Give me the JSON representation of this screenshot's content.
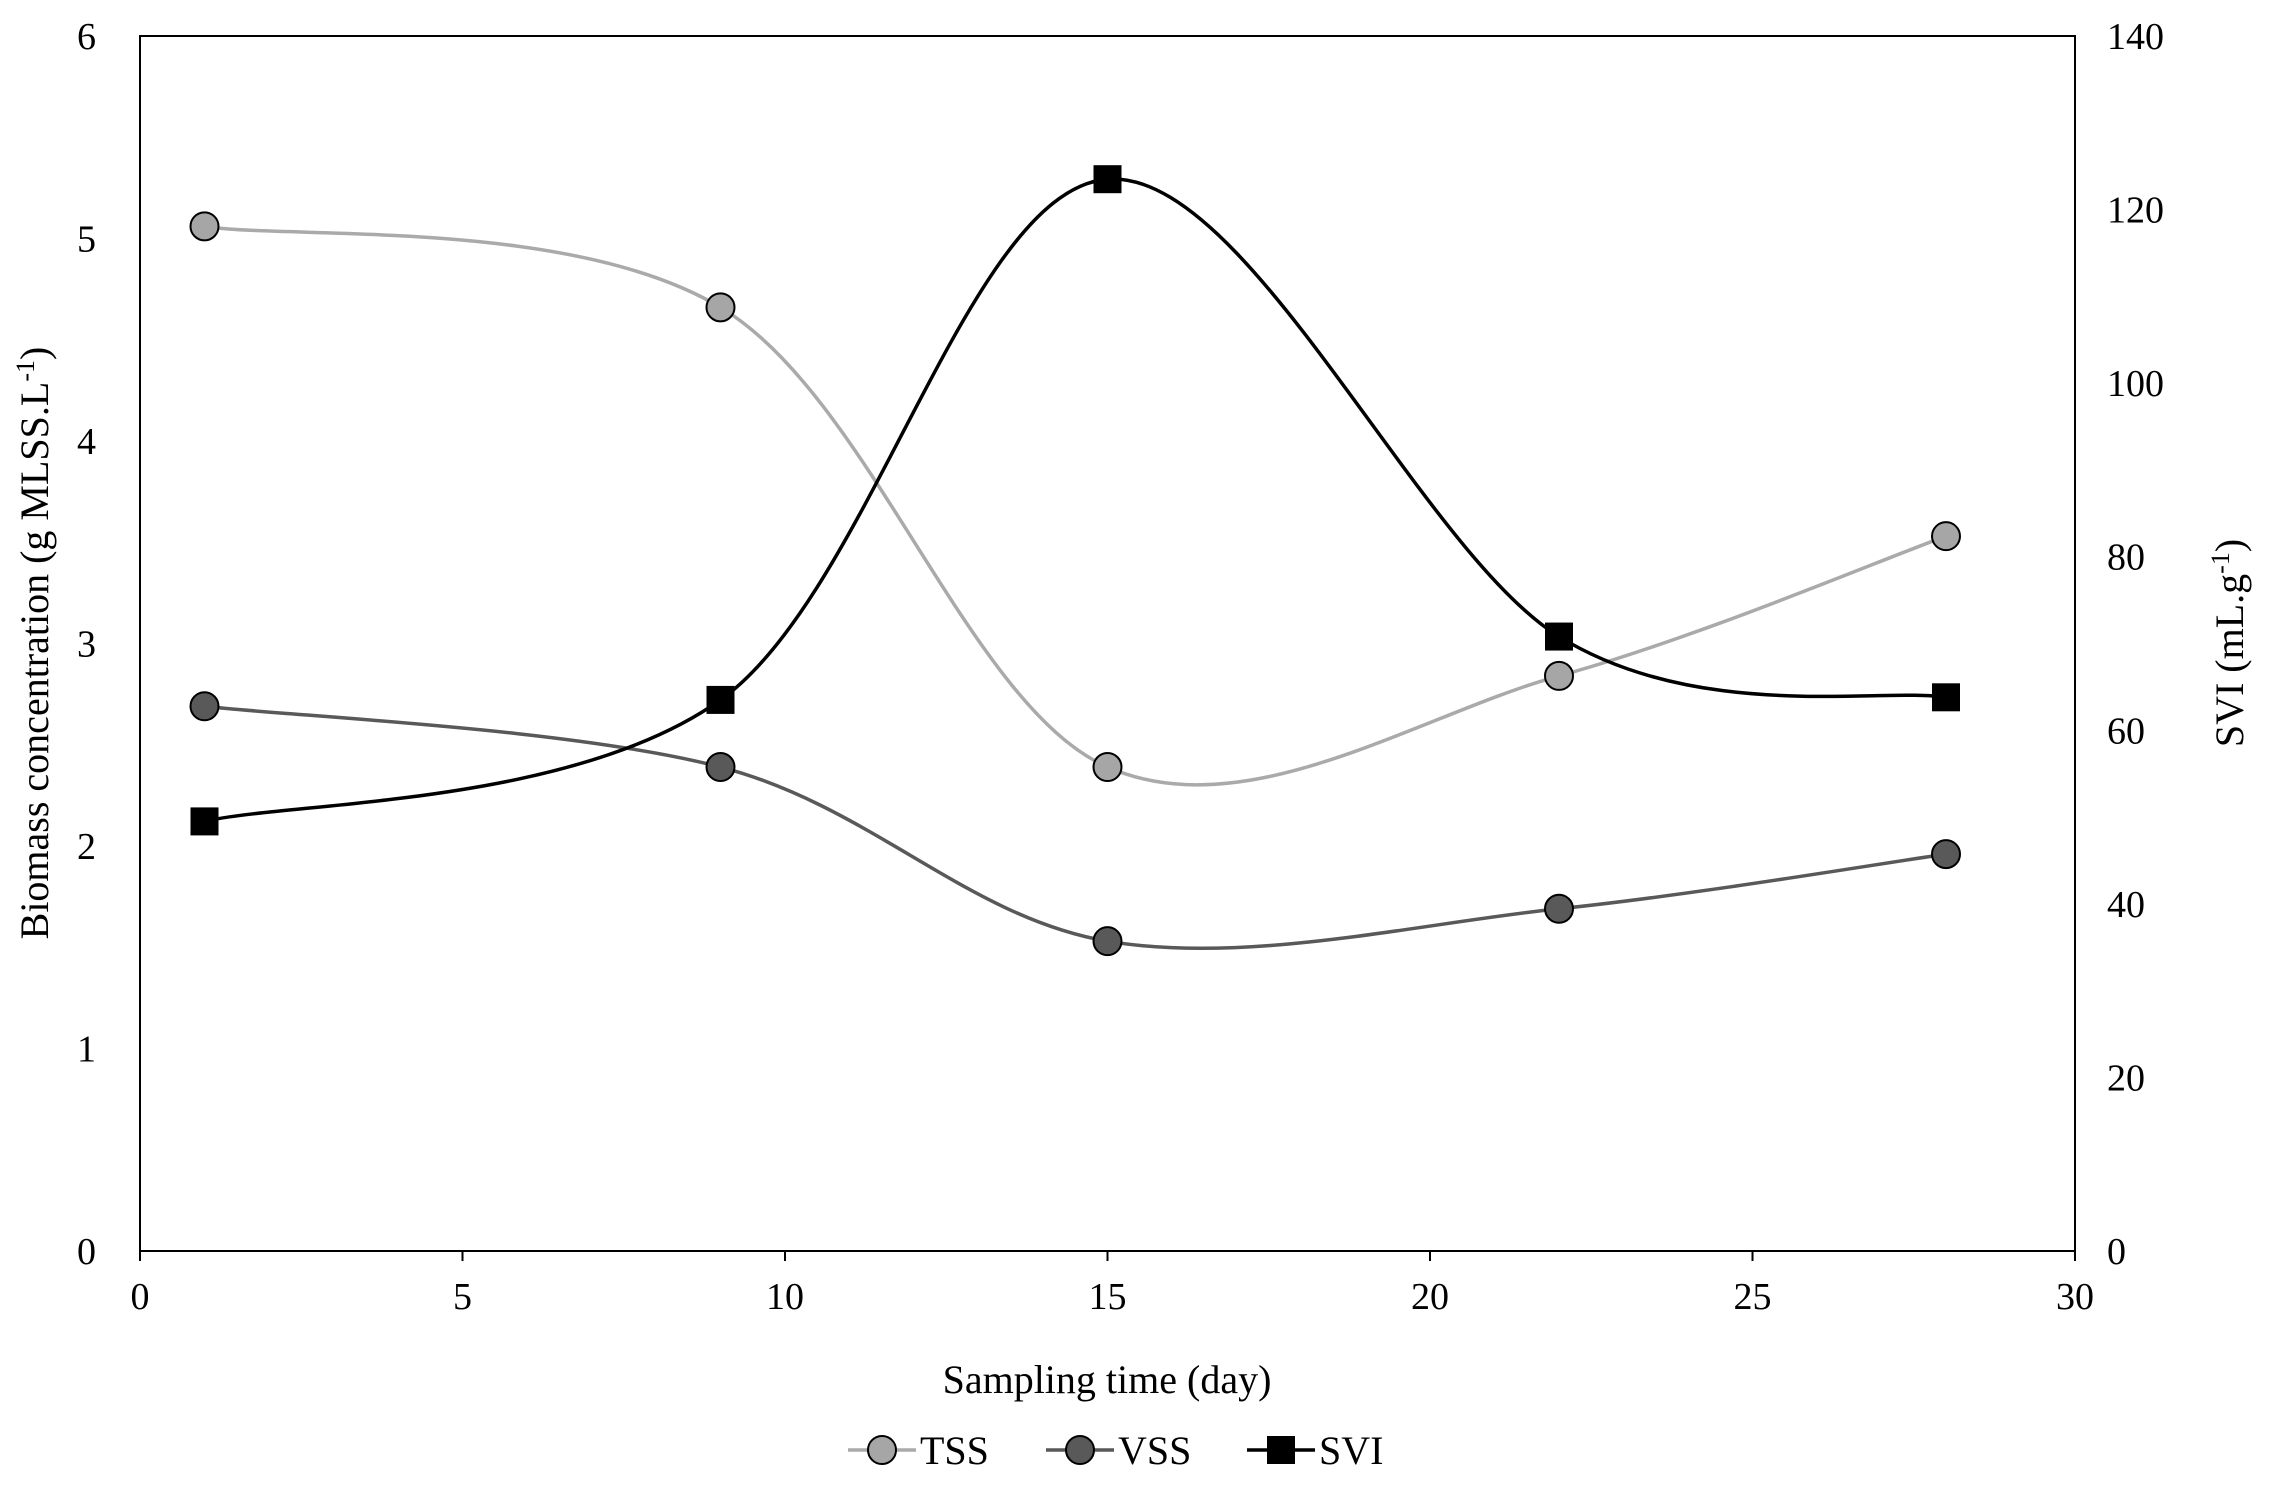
{
  "chart_data": {
    "type": "line",
    "x": [
      1,
      9,
      15,
      22,
      28
    ],
    "xlabel": "Sampling time (day)",
    "xlim": [
      0,
      30
    ],
    "xticks": [
      "0",
      "5",
      "10",
      "15",
      "20",
      "25",
      "30"
    ],
    "ylabel_left": {
      "main": "Biomass concentration (g MLSS.L",
      "sup": "-1",
      "close": ")"
    },
    "ylim_left": [
      0,
      6
    ],
    "yticks_left": [
      "0",
      "1",
      "2",
      "3",
      "4",
      "5",
      "6"
    ],
    "ylabel_right": {
      "main": "SVI (mL.g",
      "sup": "-1",
      "close": ")"
    },
    "ylim_right": [
      0,
      140
    ],
    "yticks_right": [
      "0",
      "20",
      "40",
      "60",
      "80",
      "100",
      "120",
      "140"
    ],
    "grid": false,
    "legend_position": "bottom",
    "smoothed": true,
    "series": [
      {
        "name": "TSS",
        "axis": "left",
        "marker": "circle",
        "line_color": "#aaaaaa",
        "marker_fill": "#a6a6a6",
        "values": [
          5.06,
          4.66,
          2.39,
          2.84,
          3.53
        ]
      },
      {
        "name": "VSS",
        "axis": "left",
        "marker": "circle",
        "line_color": "#595959",
        "marker_fill": "#595959",
        "values": [
          2.69,
          2.39,
          1.53,
          1.69,
          1.96
        ]
      },
      {
        "name": "SVI",
        "axis": "right",
        "marker": "square",
        "line_color": "#000000",
        "marker_fill": "#000000",
        "values": [
          49.5,
          63.5,
          123.5,
          70.8,
          63.8
        ]
      }
    ]
  }
}
